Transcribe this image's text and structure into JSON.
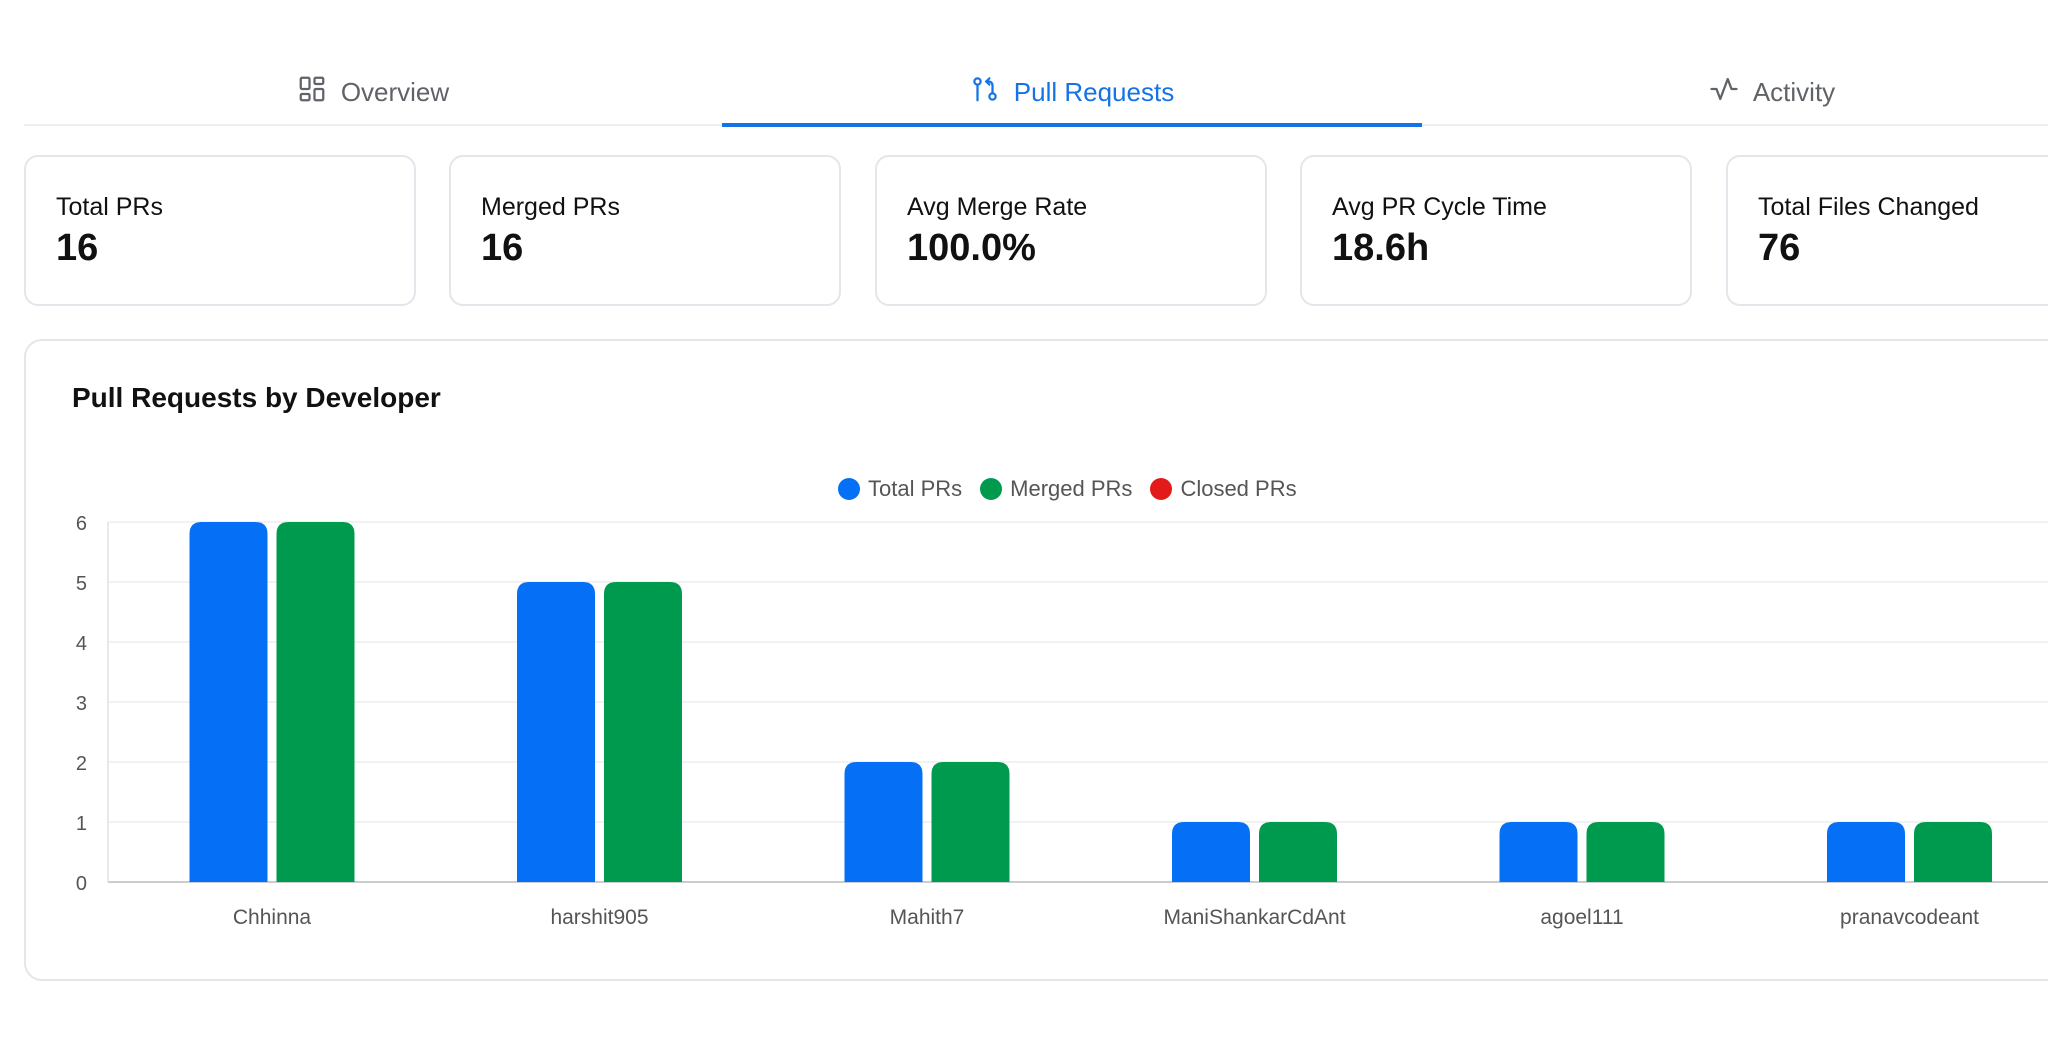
{
  "tabs": [
    {
      "label": "Overview",
      "icon": "grid-icon",
      "active": false
    },
    {
      "label": "Pull Requests",
      "icon": "pull-request-icon",
      "active": true
    },
    {
      "label": "Activity",
      "icon": "activity-icon",
      "active": false
    }
  ],
  "stats": [
    {
      "label": "Total PRs",
      "value": "16"
    },
    {
      "label": "Merged PRs",
      "value": "16"
    },
    {
      "label": "Avg Merge Rate",
      "value": "100.0%"
    },
    {
      "label": "Avg PR Cycle Time",
      "value": "18.6h"
    },
    {
      "label": "Total Files Changed",
      "value": "76"
    }
  ],
  "colors": {
    "accent": "#1573e6",
    "total": "#0570f5",
    "merged": "#009a4e",
    "closed": "#e31a1a"
  },
  "chart_data": {
    "type": "bar",
    "title": "Pull Requests by Developer",
    "categories": [
      "Chhinna",
      "harshit905",
      "Mahith7",
      "ManiShankarCdAnt",
      "agoel111",
      "pranavcodeant"
    ],
    "series": [
      {
        "name": "Total PRs",
        "values": [
          6,
          5,
          2,
          1,
          1,
          1
        ]
      },
      {
        "name": "Merged PRs",
        "values": [
          6,
          5,
          2,
          1,
          1,
          1
        ]
      },
      {
        "name": "Closed PRs",
        "values": [
          0,
          0,
          0,
          0,
          0,
          0
        ]
      }
    ],
    "ylim": [
      0,
      6
    ],
    "yticks": [
      0,
      1,
      2,
      3,
      4,
      5,
      6
    ],
    "xlabel": "",
    "ylabel": "",
    "legend": "top-center",
    "grid": true
  }
}
